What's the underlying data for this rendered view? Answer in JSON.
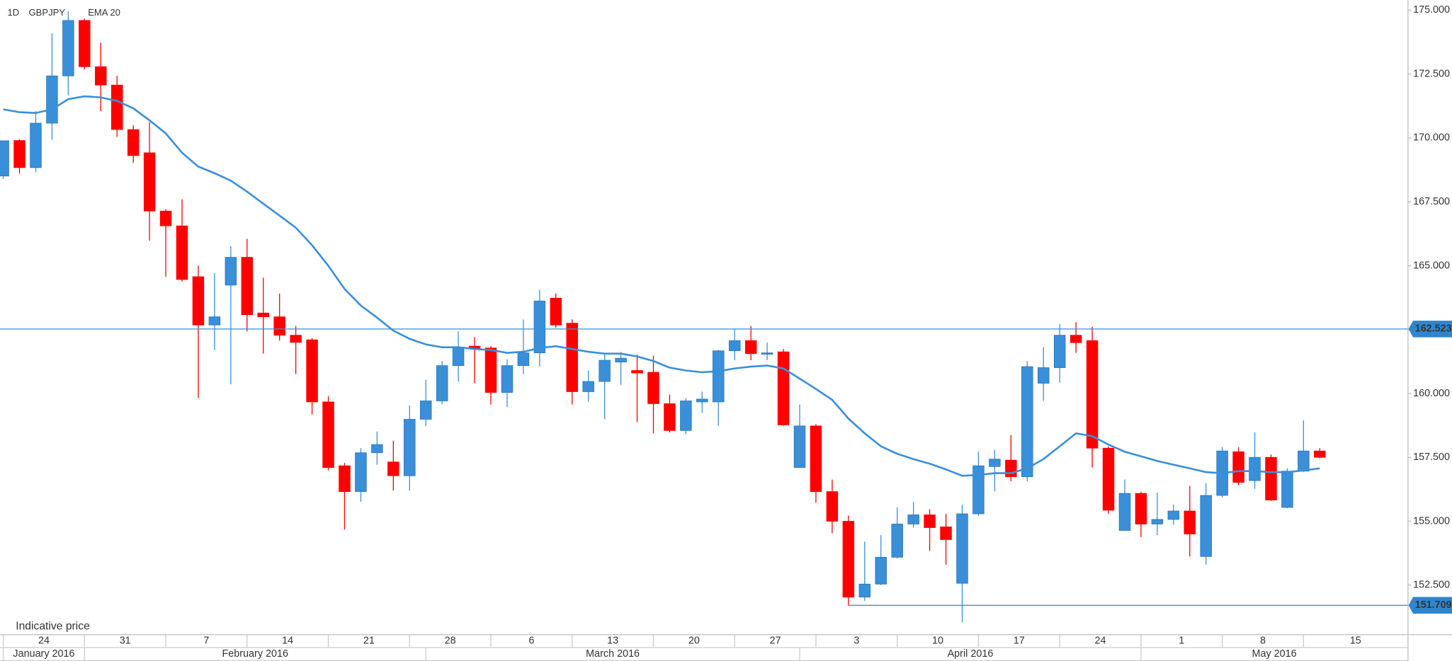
{
  "chart_data": {
    "type": "candlestick",
    "interval": "1D",
    "note": "Indicative price",
    "xlim": [
      -0.2,
      86.4
    ],
    "ylim": [
      150.58,
      175.4
    ],
    "yticks": [
      {
        "value": 152.5,
        "label": "152.500"
      },
      {
        "value": 155,
        "label": "155.000"
      },
      {
        "value": 157.5,
        "label": "157.500"
      },
      {
        "value": 160,
        "label": "160.000"
      },
      {
        "value": 162.5,
        "label": "162.500"
      },
      {
        "value": 165,
        "label": "165.000"
      },
      {
        "value": 167.5,
        "label": "167.500"
      },
      {
        "value": 170,
        "label": "170.000"
      },
      {
        "value": 172.5,
        "label": "172.500"
      },
      {
        "value": 175,
        "label": "175.000"
      }
    ],
    "xticks": [
      {
        "value": 0,
        "label": "24"
      },
      {
        "value": 5,
        "label": "31"
      },
      {
        "value": 10,
        "label": "7"
      },
      {
        "value": 15,
        "label": "14"
      },
      {
        "value": 20,
        "label": "21"
      },
      {
        "value": 25,
        "label": "28"
      },
      {
        "value": 30,
        "label": "6"
      },
      {
        "value": 35,
        "label": "13"
      },
      {
        "value": 40,
        "label": "20"
      },
      {
        "value": 45,
        "label": "27"
      },
      {
        "value": 50,
        "label": "3"
      },
      {
        "value": 55,
        "label": "10"
      },
      {
        "value": 60,
        "label": "17"
      },
      {
        "value": 65,
        "label": "24"
      },
      {
        "value": 70,
        "label": "1"
      },
      {
        "value": 75,
        "label": "8"
      },
      {
        "value": 80,
        "label": "15"
      }
    ],
    "month_ticks": [
      {
        "value": 0,
        "label": "January 2016"
      },
      {
        "value": 5,
        "label": "February 2016"
      },
      {
        "value": 26,
        "label": "March 2016"
      },
      {
        "value": 49,
        "label": "April 2016"
      },
      {
        "value": 70,
        "label": "May 2016"
      }
    ],
    "price_lines": [
      {
        "value": 162.523,
        "label": "162.523"
      },
      {
        "value": 151.709,
        "label": "151.709",
        "x_start": 52
      }
    ],
    "series": [
      {
        "name": "GBPJPY",
        "up_color": "#3a8fd9",
        "down_color": "#ff0000",
        "open": [
          168.51,
          169.9,
          168.84,
          170.58,
          172.43,
          174.6,
          172.79,
          172.07,
          170.33,
          169.42,
          167.14,
          166.56,
          164.57,
          162.68,
          164.24,
          165.33,
          163.15,
          163.0,
          162.28,
          162.1,
          159.67,
          157.17,
          156.16,
          157.68,
          157.32,
          156.78,
          158.99,
          159.71,
          161.09,
          161.85,
          161.78,
          160.04,
          161.09,
          161.59,
          163.73,
          162.75,
          160.07,
          160.47,
          161.23,
          160.9,
          160.83,
          159.6,
          158.55,
          159.67,
          159.67,
          161.67,
          162.07,
          161.56,
          161.63,
          157.1,
          158.73,
          156.16,
          155.0,
          152.03,
          152.54,
          153.59,
          154.89,
          155.25,
          154.78,
          152.57,
          155.29,
          157.14,
          157.39,
          156.74,
          160.4,
          161.01,
          162.28,
          162.07,
          157.86,
          154.64,
          156.09,
          154.89,
          155.07,
          155.4,
          153.62,
          156.01,
          157.72,
          156.59,
          157.5,
          155.54,
          156.96,
          157.75
        ],
        "high": [
          169.9,
          169.95,
          171.05,
          174.1,
          174.96,
          174.67,
          173.73,
          172.43,
          170.5,
          170.62,
          167.21,
          167.6,
          165.0,
          164.71,
          165.76,
          166.05,
          164.53,
          163.91,
          162.64,
          162.17,
          159.89,
          157.28,
          157.86,
          158.51,
          158.15,
          159.53,
          160.54,
          161.27,
          162.43,
          162.21,
          161.85,
          161.34,
          162.9,
          164.06,
          163.91,
          162.9,
          160.9,
          161.59,
          161.63,
          161.52,
          161.48,
          159.96,
          159.82,
          160.07,
          161.7,
          162.54,
          162.64,
          161.99,
          161.74,
          159.57,
          158.8,
          156.63,
          155.22,
          154.2,
          154.46,
          155.54,
          155.76,
          155.47,
          155.29,
          155.65,
          157.72,
          157.79,
          158.37,
          161.27,
          161.81,
          162.72,
          162.79,
          162.61,
          157.93,
          156.63,
          156.16,
          156.12,
          155.65,
          156.38,
          156.49,
          157.9,
          157.9,
          158.48,
          157.61,
          157.07,
          158.95,
          157.86
        ],
        "low": [
          168.4,
          168.6,
          168.66,
          169.93,
          171.67,
          172.68,
          171.05,
          170.04,
          169.02,
          165.98,
          164.57,
          164.38,
          159.82,
          161.7,
          160.36,
          162.43,
          161.56,
          162.07,
          160.76,
          159.17,
          156.99,
          154.67,
          155.76,
          157.21,
          156.2,
          156.2,
          158.73,
          159.57,
          160.47,
          160.4,
          159.57,
          159.46,
          160.76,
          161.05,
          162.57,
          159.57,
          159.67,
          158.99,
          160.33,
          158.88,
          158.44,
          158.48,
          158.41,
          159.24,
          158.73,
          161.3,
          161.3,
          161.3,
          158.73,
          157.1,
          155.72,
          154.53,
          151.7,
          151.88,
          152.5,
          153.55,
          154.75,
          153.84,
          153.3,
          151.05,
          155.22,
          156.16,
          156.56,
          156.56,
          159.71,
          160.43,
          161.59,
          157.1,
          155.29,
          154.64,
          154.38,
          154.46,
          154.86,
          153.62,
          153.3,
          155.94,
          156.41,
          156.27,
          155.8,
          155.51,
          156.92,
          157.46
        ],
        "close": [
          169.89,
          168.84,
          170.58,
          172.43,
          174.6,
          172.79,
          172.07,
          170.33,
          169.31,
          167.14,
          166.56,
          164.46,
          162.68,
          163.0,
          165.33,
          163.08,
          163.0,
          162.28,
          162.0,
          159.67,
          157.1,
          156.16,
          157.68,
          158.0,
          156.78,
          158.99,
          159.71,
          161.09,
          161.81,
          161.74,
          160.04,
          161.09,
          161.59,
          163.62,
          162.68,
          160.07,
          160.47,
          161.3,
          161.38,
          160.8,
          159.6,
          158.55,
          159.71,
          159.78,
          161.67,
          162.07,
          161.56,
          161.59,
          158.77,
          158.73,
          156.16,
          155.0,
          152.03,
          152.54,
          153.59,
          154.89,
          155.25,
          154.75,
          154.28,
          155.29,
          157.17,
          157.43,
          156.74,
          161.05,
          161.01,
          162.28,
          161.99,
          157.86,
          155.43,
          156.09,
          154.89,
          155.07,
          155.4,
          154.5,
          156.01,
          157.75,
          156.52,
          157.5,
          155.83,
          156.96,
          157.75,
          157.5
        ]
      },
      {
        "name": "EMA 20",
        "color": "#3a8fd9",
        "values": [
          171.12,
          171.01,
          170.98,
          171.12,
          171.52,
          171.63,
          171.59,
          171.45,
          171.16,
          170.69,
          170.18,
          169.42,
          168.88,
          168.62,
          168.33,
          167.9,
          167.43,
          166.96,
          166.49,
          165.8,
          165.0,
          164.09,
          163.44,
          162.97,
          162.46,
          162.14,
          161.92,
          161.81,
          161.81,
          161.74,
          161.7,
          161.59,
          161.63,
          161.78,
          161.85,
          161.74,
          161.63,
          161.56,
          161.56,
          161.45,
          161.27,
          161.01,
          160.9,
          160.83,
          160.87,
          160.98,
          161.05,
          161.09,
          160.98,
          160.58,
          160.18,
          159.75,
          159.02,
          158.44,
          157.93,
          157.64,
          157.43,
          157.25,
          157.03,
          156.78,
          156.81,
          156.88,
          156.88,
          157.07,
          157.43,
          157.93,
          158.44,
          158.33,
          158.0,
          157.72,
          157.54,
          157.36,
          157.21,
          157.07,
          156.92,
          156.88,
          156.96,
          156.96,
          156.92,
          156.92,
          156.99,
          157.07
        ]
      }
    ]
  }
}
